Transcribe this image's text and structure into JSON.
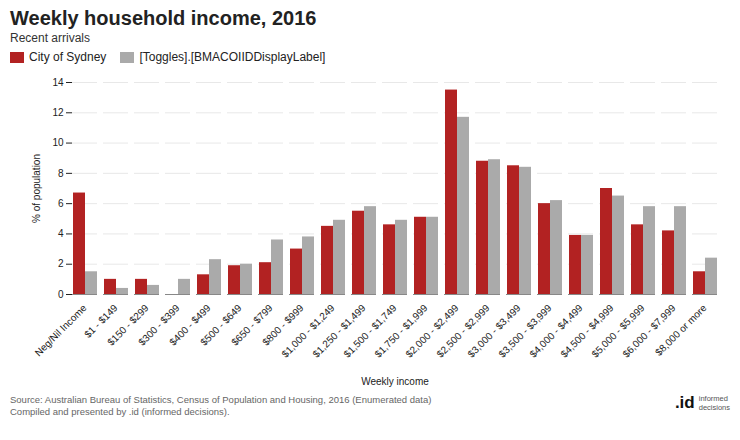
{
  "chart_data": {
    "type": "bar",
    "title": "Weekly household income, 2016",
    "subtitle": "Recent arrivals",
    "xlabel": "Weekly income",
    "ylabel": "% of population",
    "caption": "Source: Australian Bureau of Statistics, Census of Population and Housing, 2016 (Enumerated data)\nCompiled and presented by .id (informed decisions).",
    "annotations": [
      ".id",
      "informed\ndecisions"
    ],
    "categories": [
      "Neg/Nil Income",
      "$1 - $149",
      "$150 - $299",
      "$300 - $399",
      "$400 - $499",
      "$500 - $649",
      "$650 - $799",
      "$800 - $999",
      "$1,000 - $1,249",
      "$1,250 - $1,499",
      "$1,500 - $1,749",
      "$1,750 - $1,999",
      "$2,000 - $2,499",
      "$2,500 - $2,999",
      "$3,000 - $3,499",
      "$3,500 - $3,999",
      "$4,000 - $4,499",
      "$4,500 - $4,999",
      "$5,000 - $5,999",
      "$6,000 - $7,999",
      "$8,000 or more"
    ],
    "series": [
      {
        "name": "City of Sydney",
        "color": "#b22222",
        "values": [
          6.7,
          1.0,
          1.0,
          0.0,
          1.3,
          1.9,
          2.1,
          3.0,
          4.5,
          5.5,
          4.6,
          5.1,
          13.5,
          8.8,
          8.5,
          6.0,
          3.9,
          7.0,
          4.6,
          4.2,
          1.5
        ]
      },
      {
        "name": "[Toggles].[BMACOIIDDisplayLabel]",
        "color": "#aaaaaa",
        "values": [
          1.5,
          0.4,
          0.6,
          1.0,
          2.3,
          2.0,
          3.6,
          3.8,
          4.9,
          5.8,
          4.9,
          5.1,
          11.7,
          8.9,
          8.4,
          6.2,
          3.9,
          6.5,
          5.8,
          5.8,
          2.4
        ]
      }
    ],
    "ylim": [
      0,
      14
    ],
    "yticks": [
      0,
      2,
      4,
      6,
      8,
      10,
      12,
      14
    ],
    "grid": true,
    "legend": "upper left"
  }
}
